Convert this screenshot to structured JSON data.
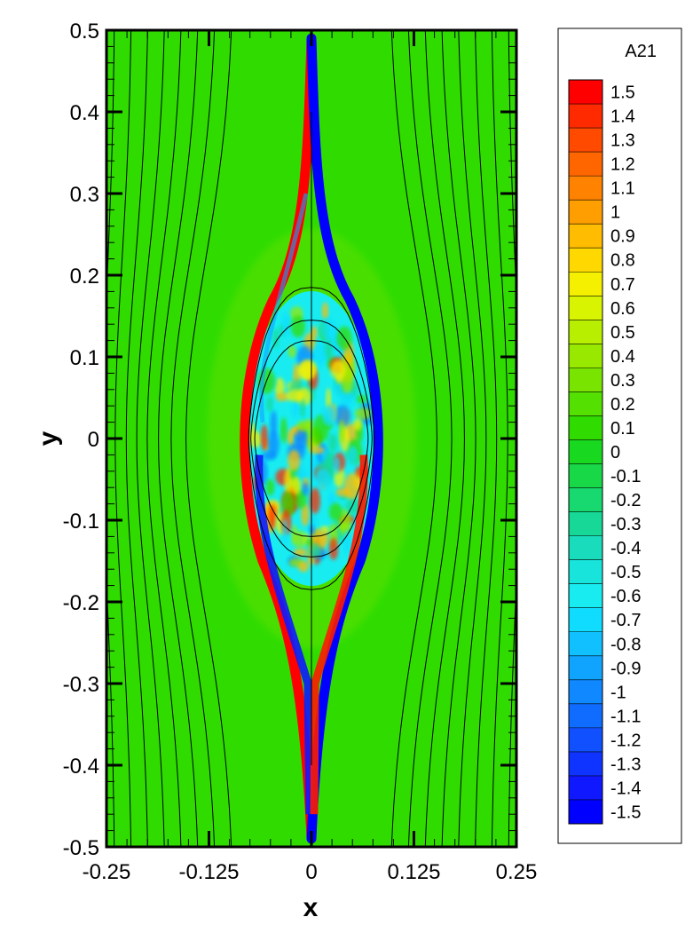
{
  "chart_data": {
    "type": "heatmap",
    "title": "",
    "xlabel": "x",
    "ylabel": "y",
    "xlim": [
      -0.25,
      0.25
    ],
    "ylim": [
      -0.5,
      0.5
    ],
    "x_ticks": [
      "-0.25",
      "-0.125",
      "0",
      "0.125",
      "0.25"
    ],
    "x_tick_values": [
      -0.25,
      -0.125,
      0,
      0.125,
      0.25
    ],
    "y_ticks": [
      "-0.5",
      "-0.4",
      "-0.3",
      "-0.2",
      "-0.1",
      "0",
      "0.1",
      "0.2",
      "0.3",
      "0.4",
      "0.5"
    ],
    "y_tick_values": [
      -0.5,
      -0.4,
      -0.3,
      -0.2,
      -0.1,
      0,
      0.1,
      0.2,
      0.3,
      0.4,
      0.5
    ],
    "background_value": 0.1,
    "colorbar": {
      "title": "A21",
      "levels": [
        "1.5",
        "1.4",
        "1.3",
        "1.2",
        "1.1",
        "1",
        "0.9",
        "0.8",
        "0.7",
        "0.6",
        "0.5",
        "0.4",
        "0.3",
        "0.2",
        "0.1",
        "0",
        "-0.1",
        "-0.2",
        "-0.3",
        "-0.4",
        "-0.5",
        "-0.6",
        "-0.7",
        "-0.8",
        "-0.9",
        "-1",
        "-1.1",
        "-1.2",
        "-1.3",
        "-1.4",
        "-1.5"
      ],
      "colors": [
        "#ff0000",
        "#ff2a00",
        "#ff4a00",
        "#ff6600",
        "#ff8200",
        "#ff9e00",
        "#ffbc00",
        "#ffd800",
        "#f4f000",
        "#d8f400",
        "#b8ee00",
        "#98e800",
        "#78e400",
        "#54e000",
        "#30dc00",
        "#18d820",
        "#18d848",
        "#18d870",
        "#18d898",
        "#18dcbc",
        "#18e4dc",
        "#18ecf0",
        "#10dcff",
        "#10c0ff",
        "#10a4ff",
        "#1088ff",
        "#106cff",
        "#1050ff",
        "#1034ff",
        "#1018ff",
        "#0000ff"
      ]
    },
    "features": {
      "inner_region": {
        "x_halfwidth": 0.085,
        "y_halfheight": 0.19,
        "palette": [
          "#10ddff",
          "#30dc00",
          "#98e800",
          "#ffbc00",
          "#ff2a00",
          "#1088ff",
          "#18d898",
          "#f4f000"
        ]
      },
      "current_sheet_left": {
        "value": 1.5,
        "color": "#ff0000"
      },
      "current_sheet_right": {
        "value": -1.5,
        "color": "#0000ff"
      },
      "tail_top": {
        "y_range": [
          0.2,
          0.49
        ]
      },
      "tail_bottom": {
        "y_range": [
          -0.49,
          -0.2
        ]
      },
      "streamline_count": 24,
      "closed_contours": [
        0.12,
        0.145,
        0.185
      ]
    }
  }
}
